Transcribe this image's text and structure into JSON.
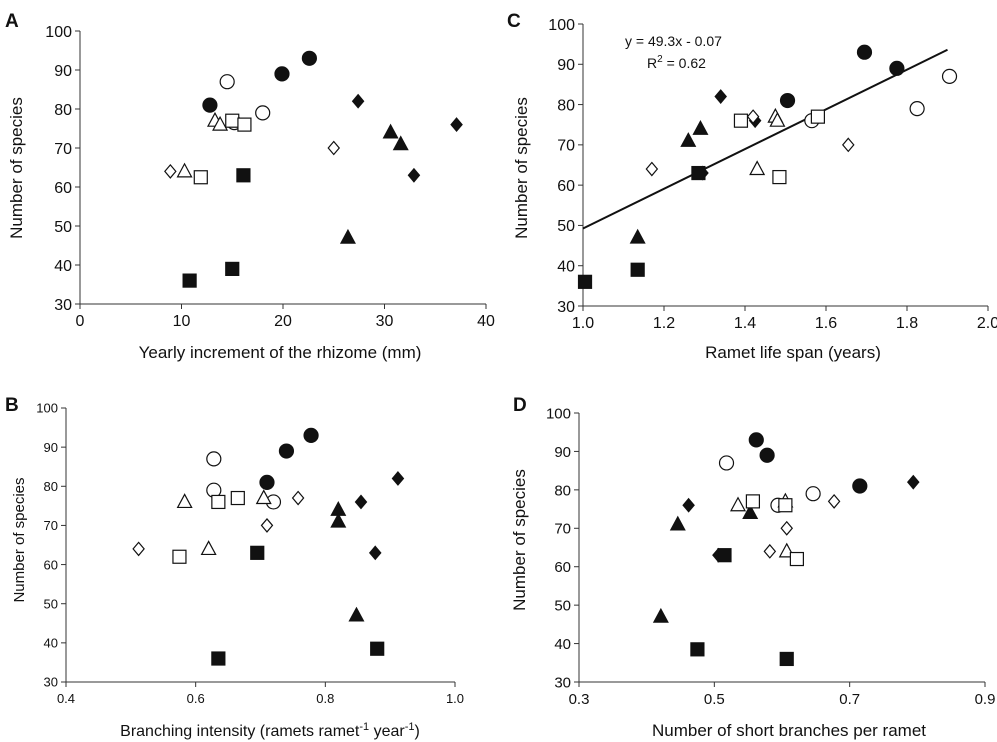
{
  "chart_data": [
    {
      "type": "scatter",
      "panel_label": "A",
      "xlabel": "Yearly increment of the rhizome (mm)",
      "ylabel": "Number of species",
      "xlim": [
        0,
        40
      ],
      "ylim": [
        30,
        100
      ],
      "xticks": [
        "0",
        "10",
        "20",
        "30",
        "40"
      ],
      "yticks": [
        "30",
        "40",
        "50",
        "60",
        "70",
        "80",
        "90",
        "100"
      ],
      "points": [
        {
          "x": 12.8,
          "y": 81,
          "marker": "circle-filled"
        },
        {
          "x": 19.9,
          "y": 89,
          "marker": "circle-filled"
        },
        {
          "x": 22.6,
          "y": 93,
          "marker": "circle-filled"
        },
        {
          "x": 14.5,
          "y": 87,
          "marker": "circle-open"
        },
        {
          "x": 15.2,
          "y": 76.5,
          "marker": "circle-open"
        },
        {
          "x": 18.0,
          "y": 79,
          "marker": "circle-open"
        },
        {
          "x": 27.4,
          "y": 82,
          "marker": "diamond-filled"
        },
        {
          "x": 32.9,
          "y": 63,
          "marker": "diamond-filled"
        },
        {
          "x": 37.1,
          "y": 76,
          "marker": "diamond-filled"
        },
        {
          "x": 8.9,
          "y": 64,
          "marker": "diamond-open"
        },
        {
          "x": 25.0,
          "y": 70,
          "marker": "diamond-open"
        },
        {
          "x": 26.4,
          "y": 47,
          "marker": "triangle-filled"
        },
        {
          "x": 30.6,
          "y": 74,
          "marker": "triangle-filled"
        },
        {
          "x": 31.6,
          "y": 71,
          "marker": "triangle-filled"
        },
        {
          "x": 10.3,
          "y": 64,
          "marker": "triangle-open"
        },
        {
          "x": 13.3,
          "y": 77,
          "marker": "triangle-open"
        },
        {
          "x": 13.8,
          "y": 76,
          "marker": "triangle-open"
        },
        {
          "x": 10.8,
          "y": 36,
          "marker": "square-filled"
        },
        {
          "x": 15.0,
          "y": 39,
          "marker": "square-filled"
        },
        {
          "x": 16.1,
          "y": 63,
          "marker": "square-filled"
        },
        {
          "x": 11.9,
          "y": 62.5,
          "marker": "square-open"
        },
        {
          "x": 15.0,
          "y": 77,
          "marker": "square-open"
        },
        {
          "x": 16.2,
          "y": 76,
          "marker": "square-open"
        }
      ]
    },
    {
      "type": "scatter",
      "panel_label": "C",
      "xlabel": "Ramet life span (years)",
      "ylabel": "Number of species",
      "xlim": [
        1.0,
        2.0
      ],
      "ylim": [
        30,
        100
      ],
      "xticks": [
        "1.0",
        "1.2",
        "1.4",
        "1.6",
        "1.8",
        "2.0"
      ],
      "yticks": [
        "30",
        "40",
        "50",
        "60",
        "70",
        "80",
        "90",
        "100"
      ],
      "annotations": [
        "y = 49.3x - 0.07",
        "0.62"
      ],
      "trendline": {
        "slope": 49.3,
        "intercept": -0.07,
        "x_range": [
          1.0,
          1.9
        ]
      },
      "points": [
        {
          "x": 1.505,
          "y": 81,
          "marker": "circle-filled"
        },
        {
          "x": 1.695,
          "y": 93,
          "marker": "circle-filled"
        },
        {
          "x": 1.775,
          "y": 89,
          "marker": "circle-filled"
        },
        {
          "x": 1.565,
          "y": 76,
          "marker": "circle-open"
        },
        {
          "x": 1.825,
          "y": 79,
          "marker": "circle-open"
        },
        {
          "x": 1.905,
          "y": 87,
          "marker": "circle-open"
        },
        {
          "x": 1.34,
          "y": 82,
          "marker": "diamond-filled"
        },
        {
          "x": 1.425,
          "y": 76,
          "marker": "diamond-filled"
        },
        {
          "x": 1.295,
          "y": 63,
          "marker": "diamond-filled"
        },
        {
          "x": 1.17,
          "y": 64,
          "marker": "diamond-open"
        },
        {
          "x": 1.42,
          "y": 77,
          "marker": "diamond-open"
        },
        {
          "x": 1.655,
          "y": 70,
          "marker": "diamond-open"
        },
        {
          "x": 1.135,
          "y": 47,
          "marker": "triangle-filled"
        },
        {
          "x": 1.26,
          "y": 71,
          "marker": "triangle-filled"
        },
        {
          "x": 1.29,
          "y": 74,
          "marker": "triangle-filled"
        },
        {
          "x": 1.43,
          "y": 64,
          "marker": "triangle-open"
        },
        {
          "x": 1.475,
          "y": 77,
          "marker": "triangle-open"
        },
        {
          "x": 1.48,
          "y": 76,
          "marker": "triangle-open"
        },
        {
          "x": 1.005,
          "y": 36,
          "marker": "square-filled"
        },
        {
          "x": 1.135,
          "y": 39,
          "marker": "square-filled"
        },
        {
          "x": 1.285,
          "y": 63,
          "marker": "square-filled"
        },
        {
          "x": 1.39,
          "y": 76,
          "marker": "square-open"
        },
        {
          "x": 1.485,
          "y": 62,
          "marker": "square-open"
        },
        {
          "x": 1.58,
          "y": 77,
          "marker": "square-open"
        }
      ]
    },
    {
      "type": "scatter",
      "panel_label": "B",
      "xlabel": "Branching intensity (ramets ramet",
      "xlabel_sup1": "-1",
      "xlabel_mid": " year",
      "xlabel_sup2": "-1",
      "xlabel_end": ")",
      "ylabel": "Number of species",
      "xlim": [
        0.4,
        1.0
      ],
      "ylim": [
        30,
        100
      ],
      "xticks": [
        "0.4",
        "0.6",
        "0.8",
        "1.0"
      ],
      "yticks": [
        "30",
        "40",
        "50",
        "60",
        "70",
        "80",
        "90",
        "100"
      ],
      "points": [
        {
          "x": 0.71,
          "y": 81,
          "marker": "circle-filled"
        },
        {
          "x": 0.74,
          "y": 89,
          "marker": "circle-filled"
        },
        {
          "x": 0.778,
          "y": 93,
          "marker": "circle-filled"
        },
        {
          "x": 0.628,
          "y": 87,
          "marker": "circle-open"
        },
        {
          "x": 0.628,
          "y": 79,
          "marker": "circle-open"
        },
        {
          "x": 0.72,
          "y": 76,
          "marker": "circle-open"
        },
        {
          "x": 0.855,
          "y": 76,
          "marker": "diamond-filled"
        },
        {
          "x": 0.877,
          "y": 63,
          "marker": "diamond-filled"
        },
        {
          "x": 0.912,
          "y": 82,
          "marker": "diamond-filled"
        },
        {
          "x": 0.512,
          "y": 64,
          "marker": "diamond-open"
        },
        {
          "x": 0.71,
          "y": 70,
          "marker": "diamond-open"
        },
        {
          "x": 0.758,
          "y": 77,
          "marker": "diamond-open"
        },
        {
          "x": 0.82,
          "y": 74,
          "marker": "triangle-filled"
        },
        {
          "x": 0.82,
          "y": 71,
          "marker": "triangle-filled"
        },
        {
          "x": 0.848,
          "y": 47,
          "marker": "triangle-filled"
        },
        {
          "x": 0.583,
          "y": 76,
          "marker": "triangle-open"
        },
        {
          "x": 0.62,
          "y": 64,
          "marker": "triangle-open"
        },
        {
          "x": 0.705,
          "y": 77,
          "marker": "triangle-open"
        },
        {
          "x": 0.635,
          "y": 36,
          "marker": "square-filled"
        },
        {
          "x": 0.695,
          "y": 63,
          "marker": "square-filled"
        },
        {
          "x": 0.88,
          "y": 38.5,
          "marker": "square-filled"
        },
        {
          "x": 0.575,
          "y": 62,
          "marker": "square-open"
        },
        {
          "x": 0.635,
          "y": 76,
          "marker": "square-open"
        },
        {
          "x": 0.665,
          "y": 77,
          "marker": "square-open"
        }
      ]
    },
    {
      "type": "scatter",
      "panel_label": "D",
      "xlabel": "Number of short branches per ramet",
      "ylabel": "Number of species",
      "xlim": [
        0.3,
        0.9
      ],
      "ylim": [
        30,
        100
      ],
      "xticks": [
        "0.3",
        "0.5",
        "0.7",
        "0.9"
      ],
      "yticks": [
        "30",
        "40",
        "50",
        "60",
        "70",
        "80",
        "90",
        "100"
      ],
      "points": [
        {
          "x": 0.562,
          "y": 93,
          "marker": "circle-filled"
        },
        {
          "x": 0.578,
          "y": 89,
          "marker": "circle-filled"
        },
        {
          "x": 0.715,
          "y": 81,
          "marker": "circle-filled"
        },
        {
          "x": 0.518,
          "y": 87,
          "marker": "circle-open"
        },
        {
          "x": 0.594,
          "y": 76,
          "marker": "circle-open"
        },
        {
          "x": 0.646,
          "y": 79,
          "marker": "circle-open"
        },
        {
          "x": 0.462,
          "y": 76,
          "marker": "diamond-filled"
        },
        {
          "x": 0.506,
          "y": 63,
          "marker": "diamond-filled"
        },
        {
          "x": 0.794,
          "y": 82,
          "marker": "diamond-filled"
        },
        {
          "x": 0.582,
          "y": 64,
          "marker": "diamond-open"
        },
        {
          "x": 0.607,
          "y": 70,
          "marker": "diamond-open"
        },
        {
          "x": 0.677,
          "y": 77,
          "marker": "diamond-open"
        },
        {
          "x": 0.421,
          "y": 47,
          "marker": "triangle-filled"
        },
        {
          "x": 0.446,
          "y": 71,
          "marker": "triangle-filled"
        },
        {
          "x": 0.553,
          "y": 74,
          "marker": "triangle-filled"
        },
        {
          "x": 0.535,
          "y": 76,
          "marker": "triangle-open"
        },
        {
          "x": 0.605,
          "y": 77,
          "marker": "triangle-open"
        },
        {
          "x": 0.607,
          "y": 64,
          "marker": "triangle-open"
        },
        {
          "x": 0.475,
          "y": 38.5,
          "marker": "square-filled"
        },
        {
          "x": 0.515,
          "y": 63,
          "marker": "square-filled"
        },
        {
          "x": 0.607,
          "y": 36,
          "marker": "square-filled"
        },
        {
          "x": 0.557,
          "y": 77,
          "marker": "square-open"
        },
        {
          "x": 0.605,
          "y": 76,
          "marker": "square-open"
        },
        {
          "x": 0.622,
          "y": 62,
          "marker": "square-open"
        }
      ]
    }
  ]
}
